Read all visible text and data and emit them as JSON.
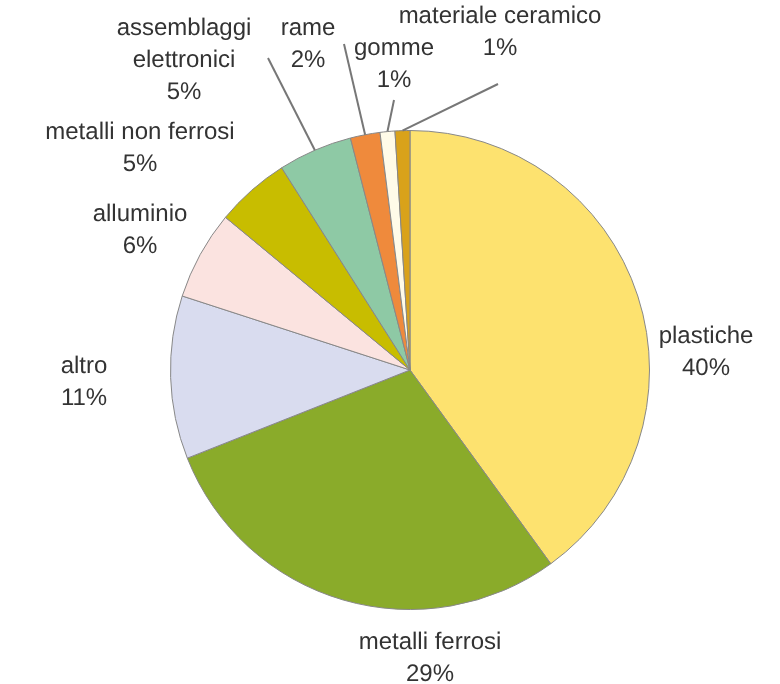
{
  "chart_data": {
    "type": "pie",
    "categories": [
      "plastiche",
      "metalli ferrosi",
      "altro",
      "alluminio",
      "metalli non ferrosi",
      "assemblaggi elettronici",
      "rame",
      "gomme",
      "materiale ceramico"
    ],
    "values": [
      40,
      29,
      11,
      6,
      5,
      5,
      2,
      1,
      1
    ],
    "value_labels": [
      "40%",
      "29%",
      "11%",
      "6%",
      "5%",
      "5%",
      "2%",
      "1%",
      "1%"
    ],
    "colors": [
      "#fde26f",
      "#8aab2a",
      "#d9dcef",
      "#fbe3e0",
      "#c8bd00",
      "#8ec9a5",
      "#ef8a3c",
      "#fffbe8",
      "#d9a21a"
    ],
    "legend": false
  }
}
